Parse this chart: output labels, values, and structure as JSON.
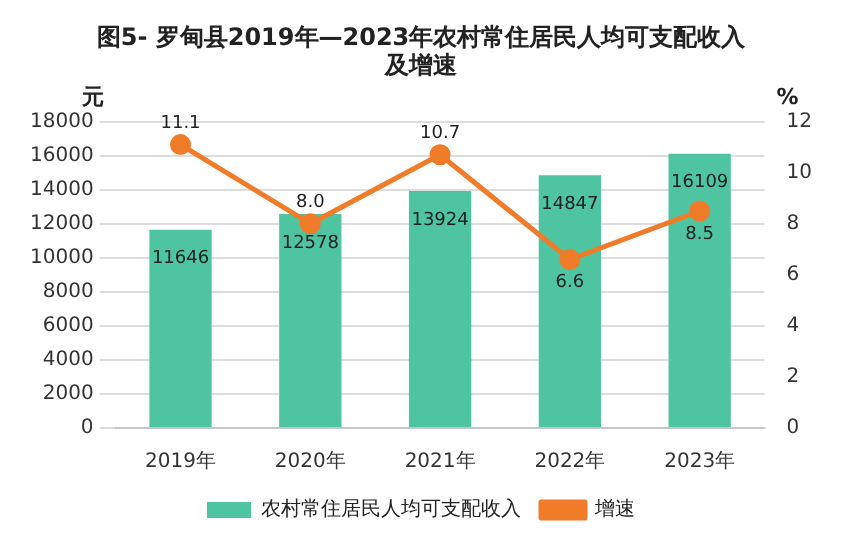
{
  "chart_data": {
    "type": "bar",
    "title": "图5- 罗甸县2019年—2023年农村常住居民人均可支配收入及增速",
    "ylabel": "元",
    "y2label": "%",
    "categories": [
      "2019年",
      "2020年",
      "2021年",
      "2022年",
      "2023年"
    ],
    "series": [
      {
        "name": "农村常住居民人均可支配收入",
        "color": "#4fc4a0",
        "values": [
          11646,
          12578,
          13924,
          14847,
          16109
        ]
      },
      {
        "name": "增速",
        "type": "line",
        "axis": "y2",
        "color": "#f07c2a",
        "values": [
          11.1,
          8.0,
          10.7,
          6.6,
          8.5
        ],
        "value_labels": [
          "11.1",
          "8.0",
          "10.7",
          "6.6",
          "8.5"
        ]
      }
    ],
    "ylim": [
      0,
      18000
    ],
    "yticks": [
      0,
      2000,
      4000,
      6000,
      8000,
      10000,
      12000,
      14000,
      16000,
      18000
    ],
    "y2lim": [
      0,
      12
    ],
    "y2ticks": [
      0,
      2,
      4,
      6,
      8,
      10,
      12
    ],
    "grid": "y",
    "legend": "bottom",
    "marker": "circle",
    "data_labels": true
  }
}
